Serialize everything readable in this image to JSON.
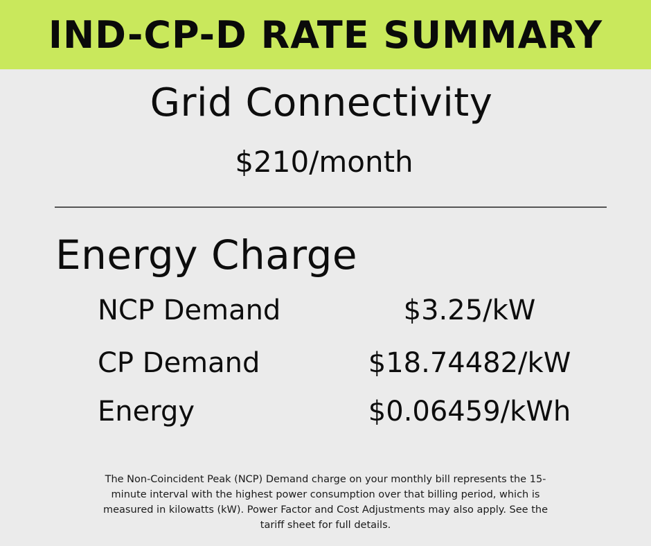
{
  "banner": {
    "title": "IND-CP-D RATE SUMMARY",
    "background_color": "#c9e85c"
  },
  "grid_connectivity": {
    "heading": "Grid Connectivity",
    "price": "$210/month"
  },
  "energy_charge": {
    "heading": "Energy Charge",
    "rows": [
      {
        "label": "NCP Demand",
        "value": "$3.25/kW"
      },
      {
        "label": "CP Demand",
        "value": "$18.74482/kW"
      },
      {
        "label": "Energy",
        "value": "$0.06459/kWh"
      }
    ]
  },
  "footnote": {
    "text": "The Non-Coincident Peak (NCP) Demand charge on your monthly bill represents the 15-minute interval with the highest power consumption over that billing period, which is measured in kilowatts (kW). Power Factor and Cost Adjustments may also apply. See the tariff sheet for full details."
  }
}
